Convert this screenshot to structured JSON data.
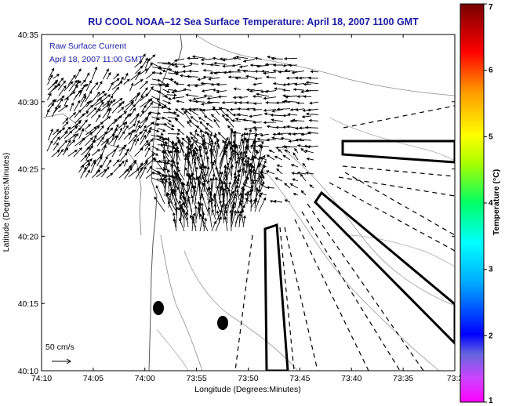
{
  "title": "RU COOL  NOAA–12  Sea Surface Temperature:  April 18, 2007 1100 GMT",
  "inset": {
    "line1": "Raw Surface Current",
    "line2": "April 18, 2007 11:00 GMT"
  },
  "axes": {
    "xlabel": "Longitude (Degrees:Minutes)",
    "ylabel": "Latitude (Degrees:Minutes)",
    "xticks": [
      "74:10",
      "74:05",
      "74:00",
      "73:55",
      "73:50",
      "73:45",
      "73:40",
      "73:35",
      "73:3"
    ],
    "yticks": [
      "40:35",
      "40:30",
      "40:25",
      "40:20",
      "40:15",
      "40:10"
    ]
  },
  "scale_label": "50 cm/s",
  "colorbar": {
    "label": "Temperature (°C)",
    "ticks": [
      "7",
      "6",
      "5",
      "4",
      "3",
      "2",
      "1"
    ],
    "range": [
      1,
      7
    ],
    "colors": [
      "#ff00ff",
      "#3333dd",
      "#0000ff",
      "#00aaff",
      "#00ffff",
      "#00ff66",
      "#aaff00",
      "#ffff00",
      "#ff9900",
      "#ff0000",
      "#aa0000",
      "#660000"
    ]
  }
}
